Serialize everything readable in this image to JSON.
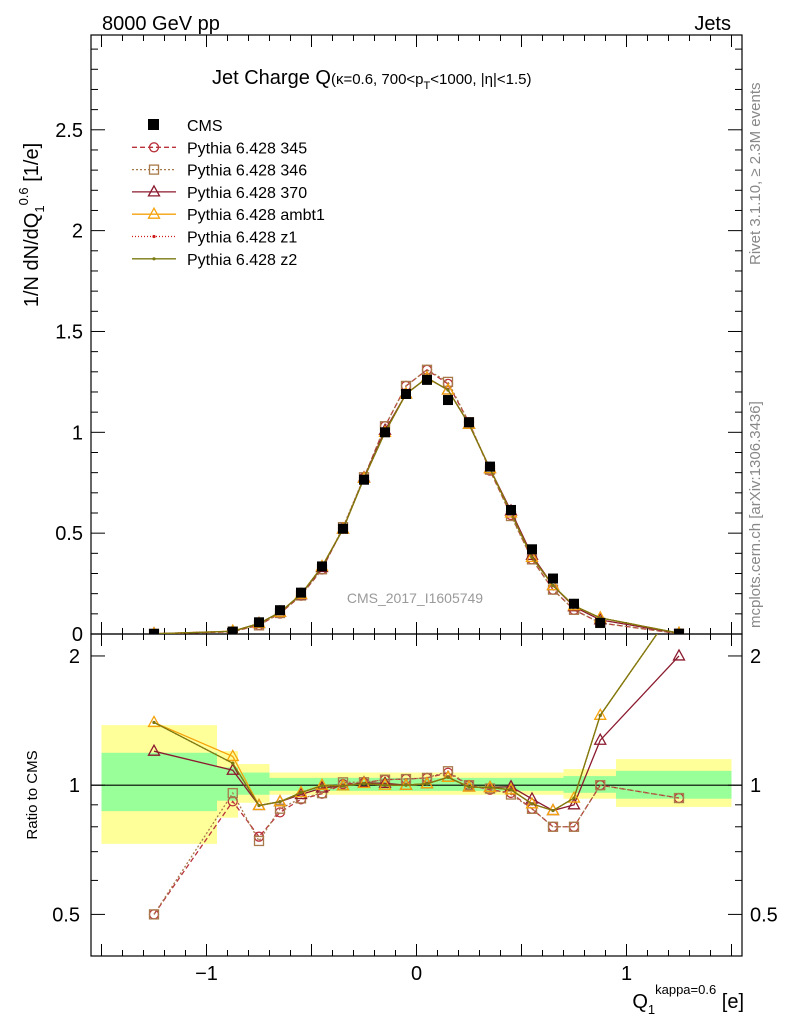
{
  "header": {
    "left": "8000 GeV pp",
    "right": "Jets"
  },
  "side_labels": {
    "rivet": "Rivet 3.1.10, ≥ 2.3M events",
    "mcplots": "mcplots.cern.ch [arXiv:1306.3436]"
  },
  "chart_data": {
    "type": "line",
    "title": {
      "main": "Jet Charge Q",
      "sub": "(κ=0.6, 700<p",
      "sub_idx": "T",
      "sub_tail": "<1000, |η|<1.5)"
    },
    "watermark": "CMS_2017_I1605749",
    "ylabel": {
      "a": "1/N dN/dQ",
      "sub": "1",
      "sup": "0.6",
      "b": " [1/e]"
    },
    "ratio_ylabel": "Ratio to CMS",
    "xlabel": {
      "base": "Q",
      "sub": "1",
      "sup": "kappa=0.6",
      "unit": " [e]"
    },
    "xlim": [
      -1.55,
      1.55
    ],
    "ylim": [
      0,
      2.97
    ],
    "ratio_ylim": [
      0.4,
      2.25
    ],
    "xticks": [
      "-1",
      "0",
      "1"
    ],
    "xtick_values": [
      -1,
      0,
      1
    ],
    "yticks": [
      "0",
      "0.5",
      "1",
      "1.5",
      "2",
      "2.5"
    ],
    "ytick_values": [
      0,
      0.5,
      1,
      1.5,
      2,
      2.5
    ],
    "ratio_yticks": [
      "0.5",
      "1",
      "2"
    ],
    "ratio_ytick_values": [
      0.5,
      1,
      2
    ],
    "data": {
      "name": "CMS",
      "x": [
        -1.25,
        -0.875,
        -0.75,
        -0.65,
        -0.55,
        -0.45,
        -0.35,
        -0.25,
        -0.15,
        -0.05,
        0.05,
        0.15,
        0.25,
        0.35,
        0.45,
        0.55,
        0.65,
        0.75,
        0.875,
        1.25
      ],
      "y": [
        0.001,
        0.012,
        0.058,
        0.118,
        0.205,
        0.335,
        0.522,
        0.765,
        1.0,
        1.19,
        1.26,
        1.16,
        1.05,
        0.83,
        0.615,
        0.42,
        0.275,
        0.15,
        0.055,
        0.0015
      ],
      "band_inner": [
        {
          "x0": -1.5,
          "x1": -0.95,
          "lo": 0.87,
          "hi": 1.19
        },
        {
          "x0": -0.95,
          "x1": -0.85,
          "lo": 0.92,
          "hi": 1.1
        },
        {
          "x0": -0.85,
          "x1": -0.7,
          "lo": 0.95,
          "hi": 1.07
        },
        {
          "x0": -0.7,
          "x1": 0.7,
          "lo": 0.97,
          "hi": 1.04
        },
        {
          "x0": 0.7,
          "x1": 0.95,
          "lo": 0.96,
          "hi": 1.05
        },
        {
          "x0": 0.95,
          "x1": 1.5,
          "lo": 0.93,
          "hi": 1.08
        }
      ],
      "band_outer": [
        {
          "x0": -1.5,
          "x1": -0.95,
          "lo": 0.73,
          "hi": 1.38
        },
        {
          "x0": -0.95,
          "x1": -0.85,
          "lo": 0.84,
          "hi": 1.2
        },
        {
          "x0": -0.85,
          "x1": -0.7,
          "lo": 0.91,
          "hi": 1.12
        },
        {
          "x0": -0.7,
          "x1": 0.7,
          "lo": 0.95,
          "hi": 1.07
        },
        {
          "x0": 0.7,
          "x1": 0.95,
          "lo": 0.93,
          "hi": 1.09
        },
        {
          "x0": 0.95,
          "x1": 1.5,
          "lo": 0.89,
          "hi": 1.15
        }
      ]
    },
    "series": [
      {
        "name": "Pythia 6.428 345",
        "color": "#b8333c",
        "dash": "5,3",
        "marker": "circle",
        "y": [
          0.0005,
          0.011,
          0.044,
          0.102,
          0.19,
          0.32,
          0.525,
          0.775,
          1.03,
          1.23,
          1.31,
          1.24,
          1.05,
          0.81,
          0.59,
          0.37,
          0.22,
          0.12,
          0.055,
          0.0014
        ]
      },
      {
        "name": "Pythia 6.428 346",
        "color": "#a8794a",
        "dash": "2,2",
        "marker": "square",
        "y": [
          0.0005,
          0.0115,
          0.043,
          0.104,
          0.191,
          0.321,
          0.53,
          0.777,
          1.03,
          1.23,
          1.31,
          1.25,
          1.05,
          0.815,
          0.585,
          0.37,
          0.22,
          0.12,
          0.055,
          0.0014
        ]
      },
      {
        "name": "Pythia 6.428 370",
        "color": "#8b1a2e",
        "dash": "",
        "marker": "triangle",
        "y": [
          0.0012,
          0.013,
          0.052,
          0.108,
          0.195,
          0.33,
          0.52,
          0.775,
          1.01,
          1.19,
          1.27,
          1.21,
          1.04,
          0.82,
          0.61,
          0.39,
          0.24,
          0.135,
          0.07,
          0.003
        ]
      },
      {
        "name": "Pythia 6.428 ambt1",
        "color": "#f5a30c",
        "dash": "",
        "marker": "triangle",
        "y": [
          0.0014,
          0.014,
          0.052,
          0.108,
          0.197,
          0.335,
          0.52,
          0.772,
          1.0,
          1.19,
          1.27,
          1.21,
          1.04,
          0.82,
          0.6,
          0.38,
          0.24,
          0.14,
          0.08,
          0.004
        ]
      },
      {
        "name": "Pythia 6.428 z1",
        "color": "#d01b1b",
        "dash": "1,2",
        "marker": "dot",
        "y": [
          0.0014,
          0.0135,
          0.052,
          0.108,
          0.197,
          0.334,
          0.52,
          0.772,
          1.0,
          1.19,
          1.27,
          1.21,
          1.04,
          0.82,
          0.6,
          0.38,
          0.24,
          0.14,
          0.08,
          0.004
        ]
      },
      {
        "name": "Pythia 6.428 z2",
        "color": "#7a7a10",
        "dash": "",
        "marker": "dot",
        "y": [
          0.0014,
          0.0135,
          0.052,
          0.108,
          0.197,
          0.334,
          0.52,
          0.772,
          1.0,
          1.19,
          1.27,
          1.21,
          1.04,
          0.82,
          0.6,
          0.38,
          0.24,
          0.14,
          0.08,
          0.004
        ]
      }
    ]
  }
}
